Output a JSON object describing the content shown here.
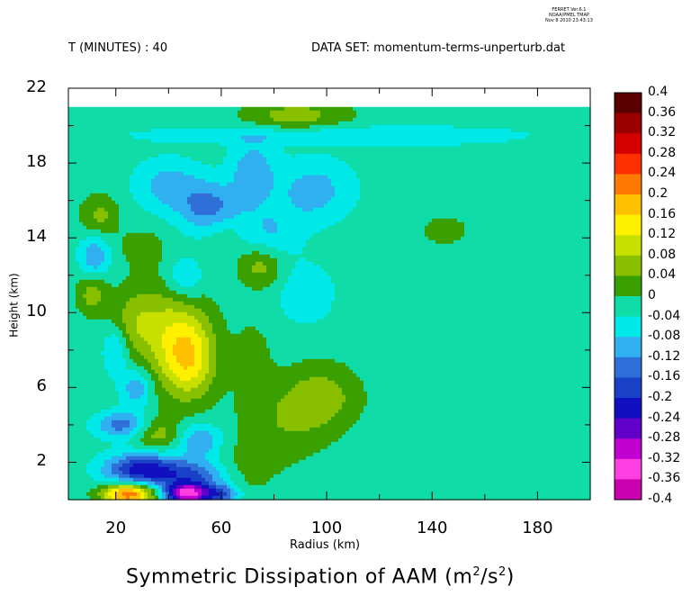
{
  "ferret_info": [
    "FERRET Ver.6.1",
    "NOAA/PMEL TMAP",
    "Nov 8 2010 23:43:13"
  ],
  "header": {
    "time_label": "T (MINUTES) : 40",
    "dataset_label": "DATA SET: momentum-terms-unperturb.dat"
  },
  "chart_data": {
    "type": "heatmap",
    "title": "Symmetric Dissipation of AAM (m²/s²)",
    "title_main": "Symmetric Dissipation of AAM (m",
    "title_unit_exp1": "2",
    "title_unit_mid": "/s",
    "title_unit_exp2": "2",
    "title_end": ")",
    "xlabel": "Radius (km)",
    "ylabel": "Height (km)",
    "xlim": [
      2,
      200
    ],
    "ylim": [
      0,
      22
    ],
    "data_ylim": [
      0,
      21
    ],
    "x_ticks": [
      "20",
      "60",
      "100",
      "140",
      "180"
    ],
    "x_tick_values": [
      20,
      60,
      100,
      140,
      180
    ],
    "y_ticks": [
      "2",
      "6",
      "10",
      "14",
      "18",
      "22"
    ],
    "y_tick_values": [
      2,
      6,
      10,
      14,
      18,
      22
    ],
    "colorbar_labels": [
      "0.4",
      "0.36",
      "0.32",
      "0.28",
      "0.24",
      "0.2",
      "0.16",
      "0.12",
      "0.08",
      "0.04",
      "0",
      "-0.04",
      "-0.08",
      "-0.12",
      "-0.16",
      "-0.2",
      "-0.24",
      "-0.28",
      "-0.32",
      "-0.36",
      "-0.4"
    ],
    "colorbar_levels": [
      0.4,
      0.36,
      0.32,
      0.28,
      0.24,
      0.2,
      0.16,
      0.12,
      0.08,
      0.04,
      0,
      -0.04,
      -0.08,
      -0.12,
      -0.16,
      -0.2,
      -0.24,
      -0.28,
      -0.32,
      -0.36,
      -0.4
    ],
    "colorbar_colors": [
      "#5a0000",
      "#9b0000",
      "#d40000",
      "#ff3000",
      "#ff7a00",
      "#ffc000",
      "#fff000",
      "#c8e000",
      "#88c000",
      "#3aa000",
      "#10dca8",
      "#00e8e8",
      "#30b0f0",
      "#2f70d8",
      "#1a40c8",
      "#1010c0",
      "#6000c8",
      "#c000d0",
      "#ff40e0",
      "#c800b0",
      "#5a0070"
    ],
    "features": [
      {
        "x": 88,
        "y": 20.5,
        "value": 0.08,
        "sx": 14,
        "sy": 0.6
      },
      {
        "x": 100,
        "y": 19.5,
        "value": -0.06,
        "sx": 50,
        "sy": 0.35
      },
      {
        "x": 40,
        "y": 16.8,
        "value": -0.08,
        "sx": 9,
        "sy": 1.0
      },
      {
        "x": 56,
        "y": 15.5,
        "value": -0.12,
        "sx": 8,
        "sy": 1.0
      },
      {
        "x": 72,
        "y": 17.5,
        "value": -0.09,
        "sx": 6,
        "sy": 1.2
      },
      {
        "x": 95,
        "y": 16.5,
        "value": -0.08,
        "sx": 10,
        "sy": 1.2
      },
      {
        "x": 78,
        "y": 14.2,
        "value": -0.06,
        "sx": 8,
        "sy": 1.0
      },
      {
        "x": 14,
        "y": 15.2,
        "value": 0.07,
        "sx": 5,
        "sy": 0.8
      },
      {
        "x": 12,
        "y": 13.0,
        "value": -0.1,
        "sx": 4,
        "sy": 0.8
      },
      {
        "x": 11,
        "y": 11.0,
        "value": 0.08,
        "sx": 4,
        "sy": 0.8
      },
      {
        "x": 30,
        "y": 13.5,
        "value": 0.04,
        "sx": 6,
        "sy": 0.7
      },
      {
        "x": 60,
        "y": 14.5,
        "value": 0.04,
        "sx": 6,
        "sy": 0.7
      },
      {
        "x": 75,
        "y": 12.5,
        "value": 0.08,
        "sx": 6,
        "sy": 0.8
      },
      {
        "x": 46,
        "y": 11.8,
        "value": -0.08,
        "sx": 5,
        "sy": 0.8
      },
      {
        "x": 92,
        "y": 11.0,
        "value": -0.05,
        "sx": 8,
        "sy": 1.2
      },
      {
        "x": 40,
        "y": 9.0,
        "value": 0.1,
        "sx": 10,
        "sy": 2.0
      },
      {
        "x": 48,
        "y": 7.5,
        "value": 0.14,
        "sx": 7,
        "sy": 1.5
      },
      {
        "x": 26,
        "y": 9.5,
        "value": 0.06,
        "sx": 6,
        "sy": 1.2
      },
      {
        "x": 20,
        "y": 8.0,
        "value": -0.08,
        "sx": 3.5,
        "sy": 1.0
      },
      {
        "x": 28,
        "y": 6.0,
        "value": -0.1,
        "sx": 4,
        "sy": 0.7
      },
      {
        "x": 98,
        "y": 5.5,
        "value": 0.08,
        "sx": 10,
        "sy": 1.2
      },
      {
        "x": 83,
        "y": 4.0,
        "value": 0.05,
        "sx": 12,
        "sy": 1.5
      },
      {
        "x": 72,
        "y": 7.5,
        "value": 0.04,
        "sx": 5,
        "sy": 1.5
      },
      {
        "x": 22,
        "y": 4.0,
        "value": -0.12,
        "sx": 7,
        "sy": 0.5
      },
      {
        "x": 36,
        "y": 3.5,
        "value": 0.08,
        "sx": 6,
        "sy": 0.6
      },
      {
        "x": 52,
        "y": 3.2,
        "value": -0.1,
        "sx": 6,
        "sy": 0.6
      },
      {
        "x": 30,
        "y": 1.6,
        "value": -0.2,
        "sx": 10,
        "sy": 0.6
      },
      {
        "x": 50,
        "y": 1.3,
        "value": -0.12,
        "sx": 10,
        "sy": 0.6
      },
      {
        "x": 25,
        "y": 0.3,
        "value": 0.26,
        "sx": 7,
        "sy": 0.4
      },
      {
        "x": 47,
        "y": 0.3,
        "value": -0.3,
        "sx": 6,
        "sy": 0.4
      },
      {
        "x": 60,
        "y": 0.3,
        "value": -0.14,
        "sx": 5,
        "sy": 0.35
      },
      {
        "x": 68,
        "y": 1.5,
        "value": 0.04,
        "sx": 8,
        "sy": 1.0
      },
      {
        "x": 145,
        "y": 14.5,
        "value": 0.04,
        "sx": 8,
        "sy": 0.7
      },
      {
        "x": 150,
        "y": 17.0,
        "value": -0.02,
        "sx": 20,
        "sy": 1.5
      }
    ]
  }
}
